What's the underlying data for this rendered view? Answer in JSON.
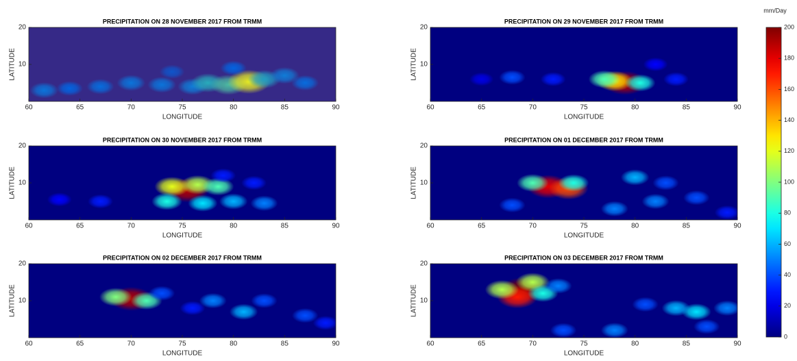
{
  "chart_data": [
    {
      "type": "heatmap",
      "colormap": "parula",
      "title": "PRECIPITATION ON 28 NOVEMBER 2017 FROM TRMM",
      "x_label": "LONGITUDE",
      "y_label": "LATITUDE",
      "xlim": [
        60,
        90
      ],
      "xticks": [
        60,
        65,
        70,
        75,
        80,
        85,
        90
      ],
      "ylim": [
        0,
        20
      ],
      "yticks": [
        10,
        20
      ],
      "x": [
        61.5,
        64,
        67,
        70,
        73,
        76,
        77.5,
        79.5,
        81.5,
        83,
        85,
        87,
        80,
        74
      ],
      "y": [
        3,
        3.5,
        4,
        5,
        4.5,
        4,
        5,
        4.5,
        5.3,
        6,
        7,
        5,
        9,
        8
      ],
      "values": [
        60,
        40,
        50,
        60,
        60,
        70,
        110,
        130,
        190,
        100,
        70,
        50,
        40,
        30
      ]
    },
    {
      "type": "heatmap",
      "colormap": "jet",
      "title": "PRECIPITATION ON 29 NOVEMBER 2017 FROM TRMM",
      "x_label": "LONGITUDE",
      "y_label": "LATITUDE",
      "xlim": [
        60,
        90
      ],
      "xticks": [
        60,
        65,
        70,
        75,
        80,
        85,
        90
      ],
      "ylim": [
        0,
        20
      ],
      "yticks": [
        10,
        20
      ],
      "x": [
        79,
        78,
        77,
        80.5,
        68,
        72,
        65,
        84,
        82
      ],
      "y": [
        5,
        5.5,
        6,
        5,
        6.5,
        6,
        6,
        6,
        10
      ],
      "values": [
        190,
        130,
        90,
        80,
        40,
        30,
        20,
        30,
        25
      ]
    },
    {
      "type": "heatmap",
      "colormap": "jet",
      "title": "PRECIPITATION ON 30 NOVEMBER 2017 FROM TRMM",
      "x_label": "LONGITUDE",
      "y_label": "LATITUDE",
      "xlim": [
        60,
        90
      ],
      "xticks": [
        60,
        65,
        70,
        75,
        80,
        85,
        90
      ],
      "ylim": [
        0,
        20
      ],
      "yticks": [
        10,
        20
      ],
      "x": [
        75.5,
        74,
        76.5,
        78.5,
        73.5,
        77,
        80,
        83,
        67,
        63,
        79,
        82
      ],
      "y": [
        8,
        9,
        9.5,
        9,
        5,
        4.5,
        5,
        4.5,
        5,
        5.5,
        12,
        10
      ],
      "values": [
        190,
        120,
        110,
        90,
        80,
        70,
        60,
        50,
        30,
        25,
        30,
        30
      ]
    },
    {
      "type": "heatmap",
      "colormap": "jet",
      "title": "PRECIPITATION ON 01 DECEMBER 2017 FROM TRMM",
      "x_label": "LONGITUDE",
      "y_label": "LATITUDE",
      "xlim": [
        60,
        90
      ],
      "xticks": [
        60,
        65,
        70,
        75,
        80,
        85,
        90
      ],
      "ylim": [
        0,
        20
      ],
      "yticks": [
        10,
        20
      ],
      "x": [
        71.5,
        73.5,
        70,
        74,
        80,
        78,
        82,
        68,
        86,
        89,
        83
      ],
      "y": [
        9,
        8.5,
        10,
        10,
        11.5,
        3,
        5,
        4,
        6,
        2,
        10
      ],
      "values": [
        180,
        160,
        90,
        80,
        60,
        50,
        50,
        40,
        40,
        30,
        40
      ]
    },
    {
      "type": "heatmap",
      "colormap": "jet",
      "title": "PRECIPITATION ON 02 DECEMBER 2017 FROM TRMM",
      "x_label": "LONGITUDE",
      "y_label": "LATITUDE",
      "xlim": [
        60,
        90
      ],
      "xticks": [
        60,
        65,
        70,
        75,
        80,
        85,
        90
      ],
      "ylim": [
        0,
        20
      ],
      "yticks": [
        10,
        20
      ],
      "x": [
        70,
        68.5,
        71.5,
        73,
        78,
        83,
        87,
        81,
        89,
        76
      ],
      "y": [
        10.5,
        11,
        10,
        12,
        10,
        10,
        6,
        7,
        4,
        8
      ],
      "values": [
        190,
        100,
        90,
        40,
        50,
        40,
        40,
        60,
        30,
        30
      ]
    },
    {
      "type": "heatmap",
      "colormap": "jet",
      "title": "PRECIPITATION ON 03 DECEMBER 2017 FROM TRMM",
      "x_label": "LONGITUDE",
      "y_label": "LATITUDE",
      "xlim": [
        60,
        90
      ],
      "xticks": [
        60,
        65,
        70,
        75,
        80,
        85,
        90
      ],
      "ylim": [
        0,
        20
      ],
      "yticks": [
        10,
        20
      ],
      "x": [
        69,
        68.5,
        70,
        67,
        71,
        72.5,
        86,
        84,
        89,
        81,
        78,
        73,
        87
      ],
      "y": [
        13,
        11,
        15,
        13,
        12,
        14,
        7,
        8,
        8,
        9,
        2,
        2,
        3
      ],
      "values": [
        200,
        170,
        110,
        110,
        80,
        50,
        70,
        60,
        50,
        40,
        50,
        40,
        40
      ]
    },
    {
      "type": "colorbar",
      "colormap": "jet",
      "title": "mm/Day",
      "ylim": [
        0,
        200
      ],
      "yticks": [
        0,
        20,
        40,
        60,
        80,
        100,
        120,
        140,
        160,
        180,
        200
      ]
    }
  ]
}
